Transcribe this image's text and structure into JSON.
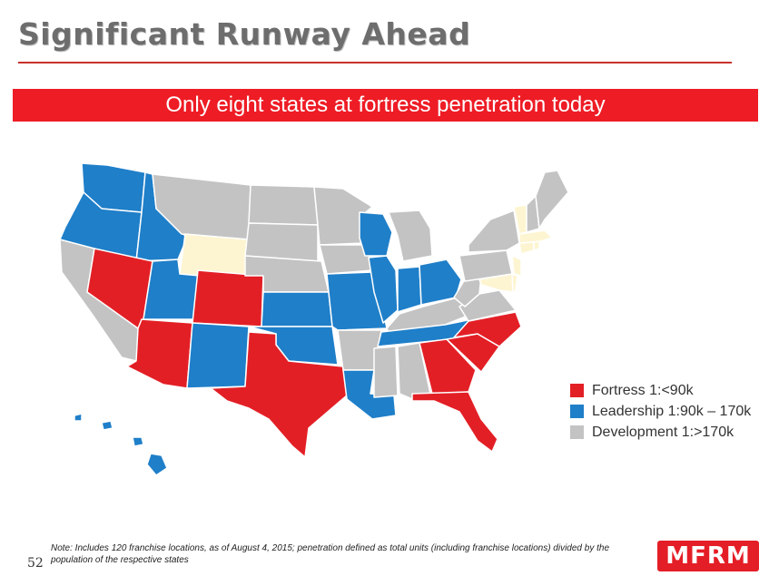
{
  "slide": {
    "title": "Significant Runway Ahead",
    "banner": "Only eight states at fortress penetration today",
    "note": "Note: Includes 120 franchise locations, as of August 4, 2015; penetration defined as total units (including franchise locations) divided by the population of the respective states",
    "page_number": "52",
    "logo_text": "MFRM"
  },
  "colors": {
    "fortress": "#e31f26",
    "leadership": "#1f7fc9",
    "development": "#c3c3c3",
    "no_presence": "#fdf5d1",
    "banner": "#ee1c25",
    "title": "#6d6d6d"
  },
  "legend": [
    {
      "label": "Fortress 1:<90k",
      "color": "#e31f26"
    },
    {
      "label": "Leadership 1:90k – 170k",
      "color": "#1f7fc9"
    },
    {
      "label": "Development 1:>170k",
      "color": "#c3c3c3"
    }
  ]
}
